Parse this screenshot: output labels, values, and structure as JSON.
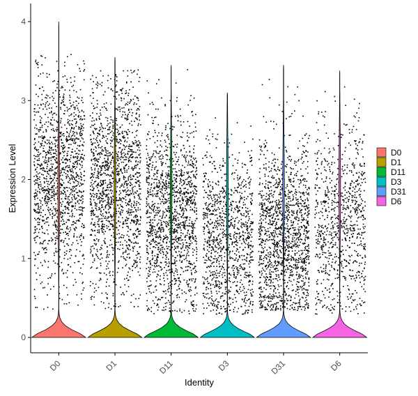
{
  "chart_data": {
    "type": "violin",
    "xlabel": "Identity",
    "ylabel": "Expression Level",
    "categories": [
      "D0",
      "D1",
      "D11",
      "D3",
      "D31",
      "D6"
    ],
    "colors": [
      "#F8766D",
      "#B79F00",
      "#00BA38",
      "#00BFC4",
      "#619CFF",
      "#F564E3"
    ],
    "ylim": [
      -0.2,
      4.2
    ],
    "yticks": [
      0,
      1,
      2,
      3,
      4
    ],
    "max_values": [
      4.0,
      3.55,
      3.45,
      3.1,
      3.45,
      3.38
    ],
    "point_clusters": [
      {
        "center": 2.0,
        "spread": 0.65,
        "lo": 0.35,
        "hi": 3.6
      },
      {
        "center": 1.95,
        "spread": 0.65,
        "lo": 0.35,
        "hi": 3.4
      },
      {
        "center": 1.55,
        "spread": 0.6,
        "lo": 0.3,
        "hi": 3.4
      },
      {
        "center": 1.25,
        "spread": 0.55,
        "lo": 0.3,
        "hi": 3.0
      },
      {
        "center": 1.3,
        "spread": 0.6,
        "lo": 0.35,
        "hi": 3.4
      },
      {
        "center": 1.45,
        "spread": 0.6,
        "lo": 0.3,
        "hi": 3.35
      }
    ],
    "point_counts": [
      1400,
      1500,
      1500,
      1100,
      1500,
      900
    ],
    "legend": [
      "D0",
      "D1",
      "D11",
      "D3",
      "D31",
      "D6"
    ],
    "legend_position": "right",
    "grid": false
  }
}
